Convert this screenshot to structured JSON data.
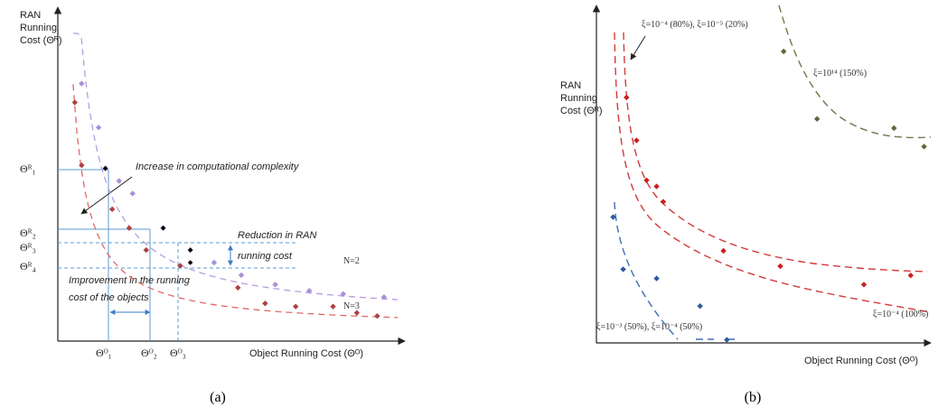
{
  "chart_data": [
    {
      "type": "scatter",
      "caption": "(a)",
      "ylabel_lines": [
        "RAN",
        "Running",
        "Cost (Θᴿ)"
      ],
      "xlabel": "Object Running Cost (Θᴼ)",
      "yticks": [
        "Θᴿ₁",
        "Θᴿ₂",
        "Θᴿ₃",
        "Θᴿ₄"
      ],
      "xticks": [
        "Θᴼ₁",
        "Θᴼ₂",
        "Θᴼ₃"
      ],
      "annotations": {
        "complexity": "Increase in computational complexity",
        "ran_reduction_1": "Reduction in RAN",
        "ran_reduction_2": "running cost",
        "object_improvement_1": "Improvement in the running",
        "object_improvement_2": "cost of the objects"
      },
      "series": [
        {
          "name": "N=2",
          "color": "#a98fd6",
          "points": [
            [
              0.07,
              0.82
            ],
            [
              0.12,
              0.68
            ],
            [
              0.14,
              0.55
            ],
            [
              0.18,
              0.51
            ],
            [
              0.22,
              0.47
            ],
            [
              0.31,
              0.36
            ],
            [
              0.39,
              0.29
            ],
            [
              0.46,
              0.25
            ],
            [
              0.54,
              0.21
            ],
            [
              0.64,
              0.18
            ],
            [
              0.74,
              0.16
            ],
            [
              0.84,
              0.15
            ],
            [
              0.96,
              0.14
            ]
          ],
          "curve_a": 0.062,
          "curve_b": 0.07
        },
        {
          "name": "N=3",
          "color": "#b04040",
          "points": [
            [
              0.05,
              0.76
            ],
            [
              0.07,
              0.56
            ],
            [
              0.16,
              0.42
            ],
            [
              0.21,
              0.36
            ],
            [
              0.26,
              0.29
            ],
            [
              0.36,
              0.24
            ],
            [
              0.53,
              0.17
            ],
            [
              0.61,
              0.12
            ],
            [
              0.7,
              0.11
            ],
            [
              0.81,
              0.11
            ],
            [
              0.88,
              0.09
            ],
            [
              0.94,
              0.08
            ]
          ],
          "curve_a": 0.035,
          "curve_b": 0.04
        }
      ],
      "markers": [
        [
          0.14,
          0.55
        ],
        [
          0.31,
          0.36
        ],
        [
          0.39,
          0.29
        ],
        [
          0.39,
          0.25
        ]
      ]
    },
    {
      "type": "scatter",
      "caption": "(b)",
      "ylabel_lines": [
        "RAN",
        "Running",
        "Cost (Θᴿ)"
      ],
      "xlabel": "Object Running Cost (Θᴼ)",
      "annotations": {
        "top_left": "ξ=10⁻⁴ (80%), ξ=10⁻⁵ (20%)",
        "top_right": "ξ=10¹⁴ (150%)",
        "bottom_left": "ξ=10⁻³ (50%), ξ=10⁻⁴ (50%)",
        "bottom_right": "ξ=10⁻⁴ (100%)"
      },
      "series": [
        {
          "name": "ξ=10⁻⁴ (80%), ξ=10⁻⁵ (20%)",
          "color": "#cc1f1f",
          "points": [
            [
              0.09,
              0.8
            ],
            [
              0.12,
              0.66
            ],
            [
              0.15,
              0.53
            ],
            [
              0.18,
              0.51
            ],
            [
              0.2,
              0.46
            ],
            [
              0.38,
              0.3
            ],
            [
              0.55,
              0.25
            ],
            [
              0.8,
              0.19
            ],
            [
              0.94,
              0.22
            ]
          ]
        },
        {
          "name": "ξ=10⁻⁴ (100%)",
          "color": "#cc1f1f",
          "points": []
        },
        {
          "name": "ξ=10⁻³ (50%), ξ=10⁻⁴ (50%)",
          "color": "#2a5aa0",
          "points": [
            [
              0.05,
              0.41
            ],
            [
              0.08,
              0.24
            ],
            [
              0.18,
              0.21
            ],
            [
              0.31,
              0.12
            ],
            [
              0.39,
              0.01
            ]
          ]
        },
        {
          "name": "ξ=10¹⁴ (150%)",
          "color": "#5a6a3a",
          "points": [
            [
              0.56,
              0.95
            ],
            [
              0.66,
              0.73
            ],
            [
              0.89,
              0.7
            ],
            [
              0.98,
              0.64
            ]
          ]
        }
      ]
    }
  ]
}
